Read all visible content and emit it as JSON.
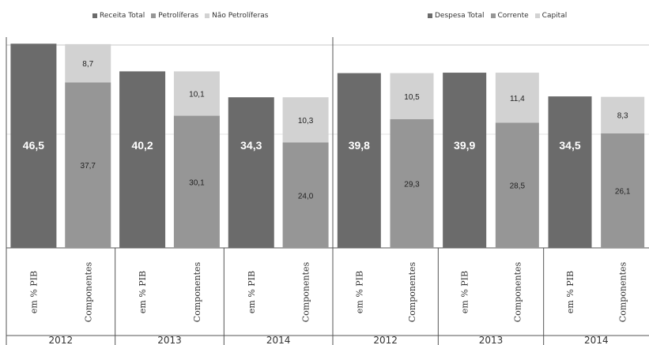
{
  "colors": {
    "dark": "#6b6b6b",
    "mid": "#969696",
    "light": "#d2d2d2",
    "axis": "#555555",
    "grid": "#c8c8c8",
    "text_dark_bar": "#ffffff",
    "text_light_bar": "#222222"
  },
  "chart_data": [
    {
      "type": "bar",
      "stacked": true,
      "legend": [
        "Receita Total",
        "Petrolíferas",
        "Não Petrolíferas"
      ],
      "legend_position": "top-left",
      "years": [
        "2012",
        "2013",
        "2014"
      ],
      "bar_labels": [
        "em % PIB",
        "Componentes"
      ],
      "total_name": "Receita Total",
      "totals": [
        46.5,
        40.2,
        34.3
      ],
      "total_labels": [
        "46,5",
        "40,2",
        "34,3"
      ],
      "series": [
        {
          "name": "Petrolíferas",
          "values": [
            37.7,
            30.1,
            24.0
          ],
          "labels": [
            "37,7",
            "30,1",
            "24,0"
          ]
        },
        {
          "name": "Não Petrolíferas",
          "values": [
            8.7,
            10.1,
            10.3
          ],
          "labels": [
            "8,7",
            "10,1",
            "10,3"
          ]
        }
      ],
      "ylim": [
        0,
        50
      ]
    },
    {
      "type": "bar",
      "stacked": true,
      "legend": [
        "Despesa Total",
        "Corrente",
        "Capital"
      ],
      "legend_position": "top-right",
      "years": [
        "2012",
        "2013",
        "2014"
      ],
      "bar_labels": [
        "em % PIB",
        "Componentes"
      ],
      "total_name": "Despesa Total",
      "totals": [
        39.8,
        39.9,
        34.5
      ],
      "total_labels": [
        "39,8",
        "39,9",
        "34,5"
      ],
      "series": [
        {
          "name": "Corrente",
          "values": [
            29.3,
            28.5,
            26.1
          ],
          "labels": [
            "29,3",
            "28,5",
            "26,1"
          ]
        },
        {
          "name": "Capital",
          "values": [
            10.5,
            11.4,
            8.3
          ],
          "labels": [
            "10,5",
            "11,4",
            "8,3"
          ]
        }
      ],
      "ylim": [
        0,
        50
      ]
    }
  ]
}
